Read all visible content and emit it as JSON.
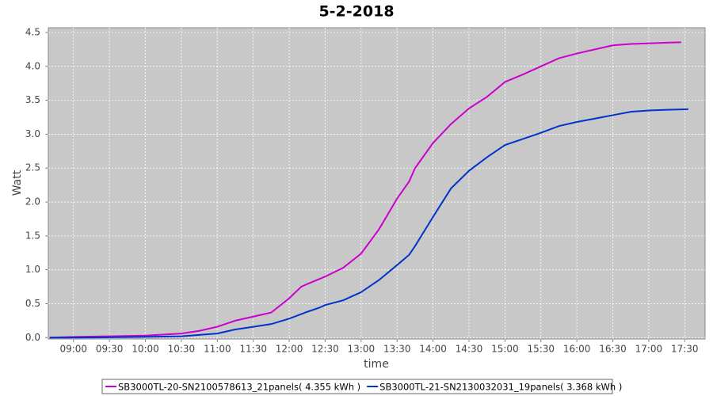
{
  "chart_data": {
    "type": "line",
    "title": "5-2-2018",
    "x_label": "time",
    "y_label": "Watt",
    "grid": true,
    "legend_position": "bottom",
    "xlim": [
      "08:39",
      "17:47"
    ],
    "xticks": [
      "09:00",
      "09:30",
      "10:00",
      "10:30",
      "11:00",
      "11:30",
      "12:00",
      "12:30",
      "13:00",
      "13:30",
      "14:00",
      "14:30",
      "15:00",
      "15:30",
      "16:00",
      "16:30",
      "17:00",
      "17:30"
    ],
    "ylim": [
      -0.02,
      4.57
    ],
    "yticks": [
      {
        "value": 0,
        "label": "0.0"
      },
      0.5,
      {
        "value": 1,
        "label": "1.0"
      },
      1.5,
      {
        "value": 2,
        "label": "2.0"
      },
      2.5,
      {
        "value": 3,
        "label": "3.0"
      },
      3.5,
      {
        "value": 4,
        "label": "4.0"
      },
      4.5
    ],
    "series": [
      {
        "name": "SB3000TL-20-SN2100578613_21panels( 4.355 kWh )",
        "color": "#cc00cc",
        "x": [
          "08:40",
          "09:00",
          "09:30",
          "10:00",
          "10:30",
          "10:45",
          "11:00",
          "11:15",
          "11:30",
          "11:45",
          "12:00",
          "12:10",
          "12:15",
          "12:30",
          "12:45",
          "13:00",
          "13:15",
          "13:30",
          "13:40",
          "13:45",
          "14:00",
          "14:15",
          "14:30",
          "14:45",
          "15:00",
          "15:15",
          "15:30",
          "15:45",
          "16:00",
          "16:15",
          "16:30",
          "16:45",
          "17:00",
          "17:15",
          "17:27"
        ],
        "values": [
          0.0,
          0.01,
          0.02,
          0.03,
          0.06,
          0.1,
          0.16,
          0.25,
          0.31,
          0.37,
          0.58,
          0.75,
          0.79,
          0.9,
          1.03,
          1.24,
          1.6,
          2.05,
          2.3,
          2.5,
          2.87,
          3.15,
          3.38,
          3.55,
          3.77,
          3.88,
          4.0,
          4.12,
          4.19,
          4.25,
          4.31,
          4.33,
          4.34,
          4.35,
          4.355
        ]
      },
      {
        "name": "SB3000TL-21-SN2130032031_19panels( 3.368 kWh )",
        "color": "#0033cc",
        "x": [
          "08:40",
          "09:00",
          "09:30",
          "10:00",
          "10:30",
          "10:45",
          "11:00",
          "11:15",
          "11:30",
          "11:45",
          "12:00",
          "12:15",
          "12:25",
          "12:30",
          "12:45",
          "13:00",
          "13:15",
          "13:30",
          "13:40",
          "13:45",
          "14:00",
          "14:15",
          "14:30",
          "14:45",
          "15:00",
          "15:15",
          "15:30",
          "15:45",
          "16:00",
          "16:15",
          "16:30",
          "16:45",
          "17:00",
          "17:15",
          "17:33"
        ],
        "values": [
          0.0,
          0.0,
          0.005,
          0.01,
          0.02,
          0.04,
          0.06,
          0.12,
          0.16,
          0.2,
          0.28,
          0.38,
          0.44,
          0.48,
          0.55,
          0.67,
          0.85,
          1.07,
          1.22,
          1.35,
          1.78,
          2.2,
          2.46,
          2.66,
          2.84,
          2.93,
          3.02,
          3.12,
          3.18,
          3.23,
          3.28,
          3.33,
          3.35,
          3.36,
          3.368
        ]
      }
    ]
  }
}
